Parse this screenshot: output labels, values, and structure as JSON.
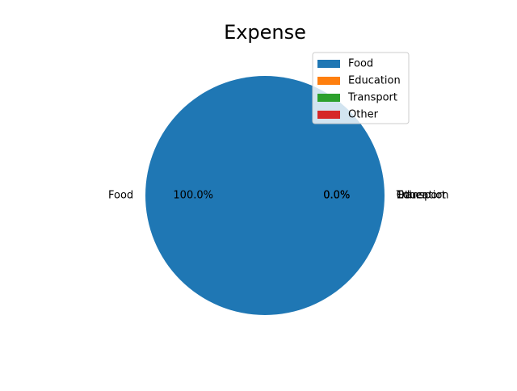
{
  "chart_data": {
    "type": "pie",
    "title": "Expense",
    "categories": [
      "Food",
      "Education",
      "Transport",
      "Other"
    ],
    "values": [
      100,
      0,
      0,
      0
    ],
    "percent_labels": [
      "100.0%",
      "0.0%",
      "0.0%",
      "0.0%"
    ],
    "colors": [
      "#1f77b4",
      "#ff7f0e",
      "#2ca02c",
      "#d62728"
    ],
    "legend": {
      "placement": "upper-right",
      "entries": [
        "Food",
        "Education",
        "Transport",
        "Other"
      ]
    }
  }
}
